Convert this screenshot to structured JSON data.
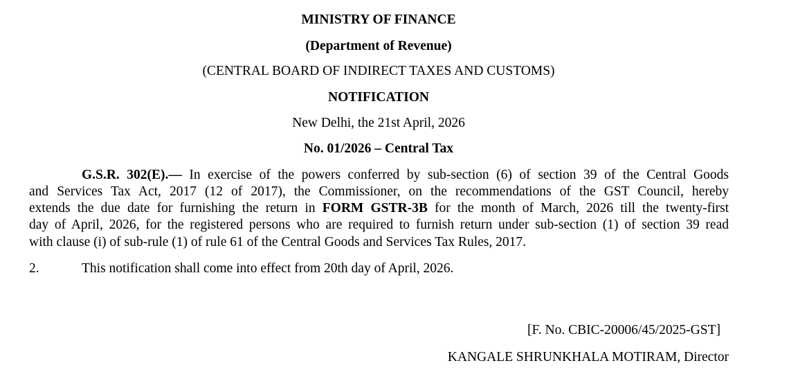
{
  "header": {
    "ministry": "MINISTRY OF FINANCE",
    "department": "(Department of Revenue)",
    "board": "(CENTRAL BOARD OF INDIRECT TAXES AND CUSTOMS)",
    "doc_type": "NOTIFICATION",
    "place_date": "New Delhi, the 21st April, 2026",
    "number": "No. 01/2026 – Central Tax"
  },
  "body": {
    "para1": {
      "gsr": "G.S.R. 302(E).—",
      "line1_rest": " In exercise of the powers conferred by sub-section (6) of section 39 of the Central Goods",
      "line2": "and Services Tax Act, 2017 (12 of 2017), the Commissioner, on the recommendations of the GST Council, hereby",
      "line3_pre": "extends the due date for furnishing the return in ",
      "form": "FORM GSTR-3B",
      "line3_post": " for the month of March, 2026 till the twenty-first",
      "line4": "day of April, 2026, for the registered persons who are required to furnish return under sub-section (1) of section 39 read",
      "line5": "with clause (i) of sub-rule (1) of rule 61 of the Central Goods and Services Tax Rules, 2017."
    },
    "para2": {
      "number": "2.",
      "text": "This notification shall come into effect from 20th day of April, 2026."
    }
  },
  "footer": {
    "file_no": "[F. No.  CBIC-20006/45/2025-GST]",
    "signatory": "KANGALE SHRUNKHALA MOTIRAM, Director"
  }
}
